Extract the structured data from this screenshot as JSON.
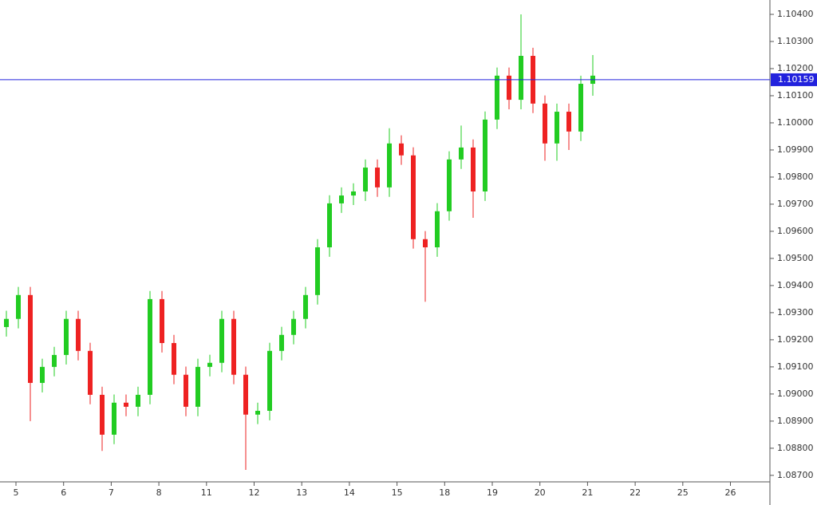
{
  "chart_data": {
    "type": "candlestick",
    "up_color": "#22cc22",
    "down_color": "#ee2222",
    "open": [
      1.09247,
      1.09277,
      1.09365,
      1.09041,
      1.091,
      1.09144,
      1.09277,
      1.09159,
      1.08997,
      1.0885,
      1.08968,
      1.08953,
      1.08997,
      1.0935,
      1.09188,
      1.09071,
      1.08953,
      1.091,
      1.09115,
      1.09277,
      1.09071,
      1.08924,
      1.08938,
      1.09159,
      1.09218,
      1.09277,
      1.09365,
      1.09541,
      1.09703,
      1.09732,
      1.09747,
      1.09835,
      1.09762,
      1.09924,
      1.0988,
      1.09571,
      1.09541,
      1.09674,
      1.09865,
      1.09909,
      1.09747,
      1.10012,
      1.10174,
      1.10085,
      1.10247,
      1.10071,
      1.09924,
      1.10041,
      1.09968,
      1.10144
    ],
    "high": [
      1.09307,
      1.09395,
      1.09395,
      1.0913,
      1.09174,
      1.09307,
      1.09307,
      1.09189,
      1.09027,
      1.08998,
      1.08998,
      1.09027,
      1.0938,
      1.0938,
      1.09218,
      1.09101,
      1.0913,
      1.09145,
      1.09307,
      1.09307,
      1.09101,
      1.08968,
      1.09189,
      1.09248,
      1.09307,
      1.09395,
      1.09571,
      1.09733,
      1.09762,
      1.09777,
      1.09865,
      1.09865,
      1.0998,
      1.09954,
      1.0991,
      1.09601,
      1.09704,
      1.09895,
      1.0999,
      1.09939,
      1.10042,
      1.10204,
      1.10204,
      1.104,
      1.10277,
      1.10101,
      1.10071,
      1.10071,
      1.10174,
      1.1025
    ],
    "low": [
      1.09212,
      1.09242,
      1.089,
      1.09006,
      1.09065,
      1.09109,
      1.09124,
      1.08962,
      1.0879,
      1.08815,
      1.08918,
      1.08918,
      1.08962,
      1.09153,
      1.09036,
      1.08918,
      1.08918,
      1.09065,
      1.0908,
      1.09036,
      1.0872,
      1.08889,
      1.08903,
      1.09124,
      1.09183,
      1.09242,
      1.0933,
      1.09506,
      1.09668,
      1.09697,
      1.09712,
      1.09727,
      1.09727,
      1.09845,
      1.09536,
      1.0934,
      1.09506,
      1.09639,
      1.0983,
      1.0965,
      1.09712,
      1.09977,
      1.1005,
      1.1005,
      1.10036,
      1.0986,
      1.0986,
      1.099,
      1.09933,
      1.101
    ],
    "close": [
      1.09277,
      1.09365,
      1.09041,
      1.091,
      1.09144,
      1.09277,
      1.09159,
      1.08997,
      1.0885,
      1.08968,
      1.08953,
      1.08997,
      1.0935,
      1.09188,
      1.09071,
      1.08953,
      1.091,
      1.09115,
      1.09277,
      1.09071,
      1.08924,
      1.08938,
      1.09159,
      1.09218,
      1.09277,
      1.09365,
      1.09541,
      1.09703,
      1.09732,
      1.09747,
      1.09835,
      1.09762,
      1.09924,
      1.0988,
      1.09571,
      1.09541,
      1.09674,
      1.09865,
      1.09909,
      1.09747,
      1.10012,
      1.10174,
      1.10085,
      1.10247,
      1.10071,
      1.09924,
      1.10041,
      1.09968,
      1.10144,
      1.10174
    ],
    "time_labels": [
      "5",
      "6",
      "7",
      "8",
      "11",
      "12",
      "13",
      "14",
      "15",
      "18",
      "19",
      "20",
      "21",
      "22",
      "25",
      "26"
    ],
    "ylim": [
      1.08676,
      1.10453
    ],
    "yticks": [
      {
        "value": 1.104,
        "label": "1.10400"
      },
      {
        "value": 1.103,
        "label": "1.10300"
      },
      {
        "value": 1.102,
        "label": "1.10200"
      },
      {
        "value": 1.101,
        "label": "1.10100"
      },
      {
        "value": 1.1,
        "label": "1.10000"
      },
      {
        "value": 1.099,
        "label": "1.09900"
      },
      {
        "value": 1.098,
        "label": "1.09800"
      },
      {
        "value": 1.097,
        "label": "1.09700"
      },
      {
        "value": 1.096,
        "label": "1.09600"
      },
      {
        "value": 1.095,
        "label": "1.09500"
      },
      {
        "value": 1.094,
        "label": "1.09400"
      },
      {
        "value": 1.093,
        "label": "1.09300"
      },
      {
        "value": 1.092,
        "label": "1.09200"
      },
      {
        "value": 1.091,
        "label": "1.09100"
      },
      {
        "value": 1.09,
        "label": "1.09000"
      },
      {
        "value": 1.089,
        "label": "1.08900"
      },
      {
        "value": 1.088,
        "label": "1.08800"
      },
      {
        "value": 1.087,
        "label": "1.08700"
      }
    ],
    "price_line": {
      "value": 1.10159,
      "label": "1.10159",
      "color": "#2222dd"
    }
  }
}
